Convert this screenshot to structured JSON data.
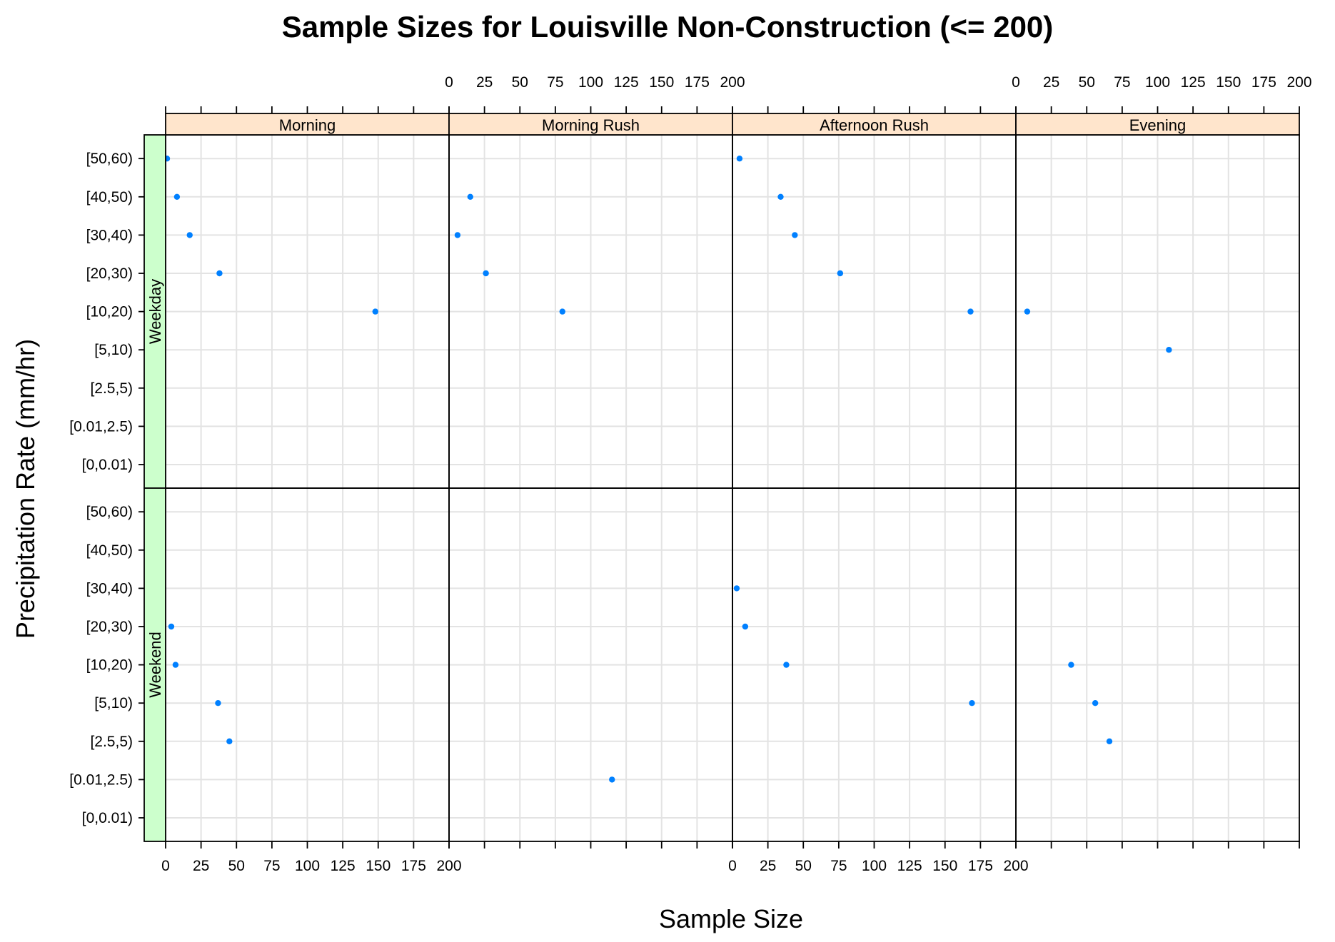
{
  "chart_data": {
    "type": "scatter",
    "title": "Sample Sizes for Louisville Non-Construction (<= 200)",
    "xlabel": "Sample Size",
    "ylabel": "Precipitation Rate (mm/hr)",
    "xlim": [
      0,
      200
    ],
    "x_ticks": [
      0,
      25,
      50,
      75,
      100,
      125,
      150,
      175,
      200
    ],
    "x_tick_labels": [
      "0",
      "25",
      "50",
      "75",
      "100",
      "125",
      "150",
      "175",
      "200"
    ],
    "categories": [
      "[0,0.01)",
      "[0.01,2.5)",
      "[2.5,5)",
      "[5,10)",
      "[10,20)",
      "[20,30)",
      "[30,40)",
      "[40,50)",
      "[50,60)"
    ],
    "grid": true,
    "columns": [
      "Morning",
      "Morning Rush",
      "Afternoon Rush",
      "Evening"
    ],
    "rows": [
      "Weekday",
      "Weekend"
    ],
    "panels": [
      {
        "row": "Weekday",
        "column": "Morning",
        "points": [
          {
            "category": "[50,60)",
            "x": 1
          },
          {
            "category": "[40,50)",
            "x": 8
          },
          {
            "category": "[30,40)",
            "x": 17
          },
          {
            "category": "[20,30)",
            "x": 38
          },
          {
            "category": "[10,20)",
            "x": 148
          }
        ]
      },
      {
        "row": "Weekday",
        "column": "Morning Rush",
        "points": [
          {
            "category": "[40,50)",
            "x": 15
          },
          {
            "category": "[30,40)",
            "x": 6
          },
          {
            "category": "[20,30)",
            "x": 26
          },
          {
            "category": "[10,20)",
            "x": 80
          }
        ]
      },
      {
        "row": "Weekday",
        "column": "Afternoon Rush",
        "points": [
          {
            "category": "[50,60)",
            "x": 5
          },
          {
            "category": "[40,50)",
            "x": 34
          },
          {
            "category": "[30,40)",
            "x": 44
          },
          {
            "category": "[20,30)",
            "x": 76
          },
          {
            "category": "[10,20)",
            "x": 168
          }
        ]
      },
      {
        "row": "Weekday",
        "column": "Evening",
        "points": [
          {
            "category": "[10,20)",
            "x": 8
          },
          {
            "category": "[5,10)",
            "x": 108
          }
        ]
      },
      {
        "row": "Weekend",
        "column": "Morning",
        "points": [
          {
            "category": "[20,30)",
            "x": 4
          },
          {
            "category": "[10,20)",
            "x": 7
          },
          {
            "category": "[5,10)",
            "x": 37
          },
          {
            "category": "[2.5,5)",
            "x": 45
          }
        ]
      },
      {
        "row": "Weekend",
        "column": "Morning Rush",
        "points": [
          {
            "category": "[0.01,2.5)",
            "x": 115
          }
        ]
      },
      {
        "row": "Weekend",
        "column": "Afternoon Rush",
        "points": [
          {
            "category": "[30,40)",
            "x": 3
          },
          {
            "category": "[20,30)",
            "x": 9
          },
          {
            "category": "[10,20)",
            "x": 38
          },
          {
            "category": "[5,10)",
            "x": 169
          }
        ]
      },
      {
        "row": "Weekend",
        "column": "Evening",
        "points": [
          {
            "category": "[10,20)",
            "x": 39
          },
          {
            "category": "[5,10)",
            "x": 56
          },
          {
            "category": "[2.5,5)",
            "x": 66
          }
        ]
      }
    ],
    "colors": {
      "points": "#0080ff",
      "strip_top": "#ffe5cc",
      "strip_left": "#ccffcc",
      "grid": "#e3e3e3"
    }
  }
}
